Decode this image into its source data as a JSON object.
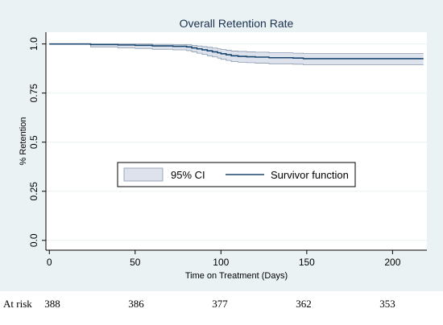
{
  "chart_data": {
    "type": "line",
    "title": "Overall Retention Rate",
    "xlabel": "Time on Treatment (Days)",
    "ylabel": "% Retention",
    "xlim": [
      -2,
      220
    ],
    "ylim": [
      -0.05,
      1.06
    ],
    "xticks": [
      0,
      50,
      100,
      150,
      200
    ],
    "yticks": [
      0.0,
      0.25,
      0.5,
      0.75,
      1.0
    ],
    "ytick_labels": [
      "0.0",
      "0.25",
      "0.5",
      "0.75",
      "1.0"
    ],
    "grid": "horizontal",
    "legend": {
      "position": "center",
      "entries": [
        "95% CI",
        "Survivor function"
      ]
    },
    "colors": {
      "line": "#1a476f",
      "ci_fill": "#dde2ec",
      "ci_edge": "#8a98ae",
      "panel": "#ffffff",
      "outer": "#eaf2f3"
    },
    "series": [
      {
        "name": "Survivor function",
        "x": [
          0,
          24,
          40,
          50,
          60,
          72,
          80,
          83,
          86,
          89,
          92,
          95,
          98,
          100,
          103,
          106,
          110,
          115,
          120,
          128,
          135,
          142,
          148,
          160,
          180,
          200,
          218
        ],
        "y": [
          1.0,
          0.997,
          0.995,
          0.993,
          0.99,
          0.988,
          0.985,
          0.98,
          0.975,
          0.97,
          0.965,
          0.96,
          0.955,
          0.95,
          0.945,
          0.94,
          0.937,
          0.935,
          0.933,
          0.93,
          0.93,
          0.928,
          0.925,
          0.925,
          0.925,
          0.925,
          0.925
        ]
      },
      {
        "name": "95% CI",
        "x": [
          0,
          24,
          40,
          50,
          60,
          72,
          80,
          83,
          86,
          89,
          92,
          95,
          98,
          100,
          103,
          106,
          110,
          115,
          120,
          128,
          135,
          142,
          148,
          160,
          180,
          200,
          218
        ],
        "lower": [
          1.0,
          0.985,
          0.98,
          0.977,
          0.973,
          0.97,
          0.966,
          0.96,
          0.953,
          0.947,
          0.94,
          0.934,
          0.928,
          0.922,
          0.916,
          0.91,
          0.907,
          0.905,
          0.902,
          0.899,
          0.899,
          0.897,
          0.894,
          0.894,
          0.894,
          0.894,
          0.894
        ],
        "upper": [
          1.0,
          1.0,
          1.0,
          1.0,
          0.998,
          0.997,
          0.996,
          0.993,
          0.99,
          0.986,
          0.983,
          0.979,
          0.975,
          0.972,
          0.968,
          0.964,
          0.962,
          0.96,
          0.958,
          0.955,
          0.955,
          0.953,
          0.951,
          0.951,
          0.951,
          0.951,
          0.951
        ]
      }
    ]
  },
  "risk_table": {
    "label": "At risk",
    "values": [
      "388",
      "386",
      "377",
      "362",
      "353"
    ],
    "at_days": [
      0,
      50,
      100,
      150,
      200
    ]
  }
}
